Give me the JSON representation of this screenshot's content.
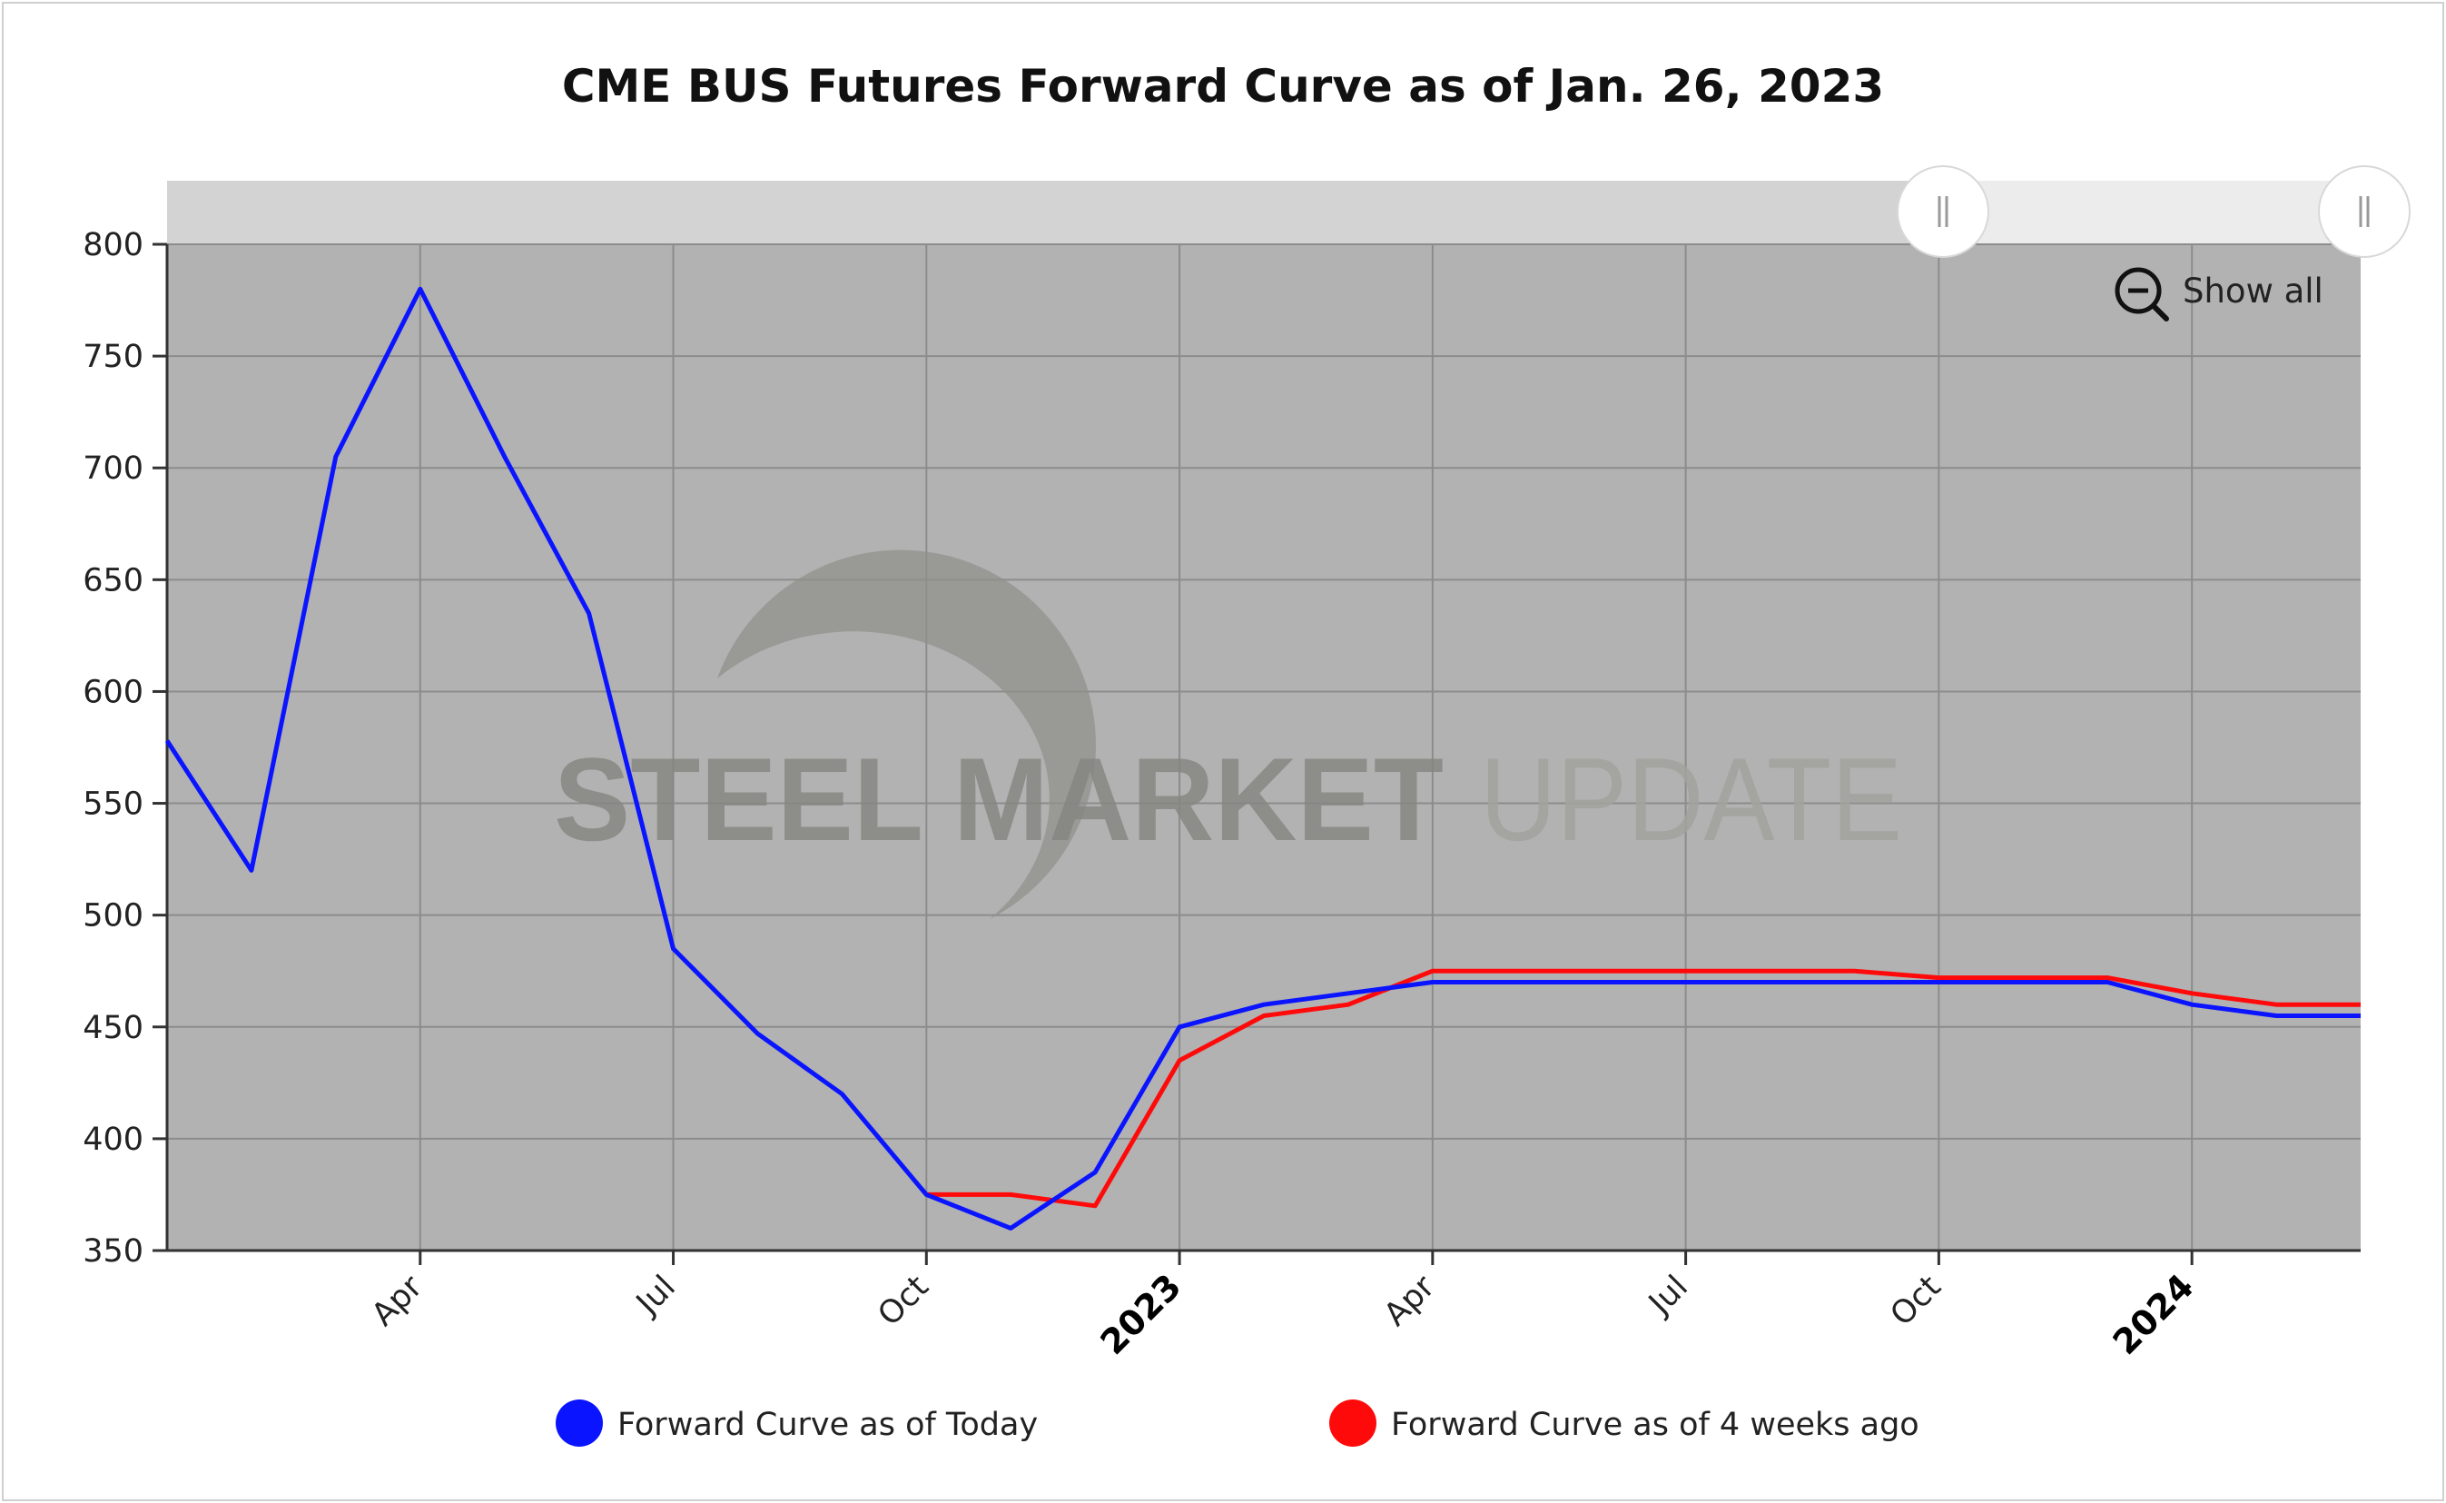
{
  "chart_data": {
    "type": "line",
    "title": "CME BUS Futures Forward Curve as of Jan. 26, 2023",
    "xlabel": "",
    "ylabel": "",
    "ylim": [
      350,
      800
    ],
    "yticks": [
      350,
      400,
      450,
      500,
      550,
      600,
      650,
      700,
      750,
      800
    ],
    "x_range": [
      "2022-01",
      "2024-03"
    ],
    "x_ticks": [
      {
        "label": "Apr",
        "x": "2022-04",
        "bold": false
      },
      {
        "label": "Jul",
        "x": "2022-07",
        "bold": false
      },
      {
        "label": "Oct",
        "x": "2022-10",
        "bold": false
      },
      {
        "label": "2023",
        "x": "2023-01",
        "bold": true
      },
      {
        "label": "Apr",
        "x": "2023-04",
        "bold": false
      },
      {
        "label": "Jul",
        "x": "2023-07",
        "bold": false
      },
      {
        "label": "Oct",
        "x": "2023-10",
        "bold": false
      },
      {
        "label": "2024",
        "x": "2024-01",
        "bold": true
      }
    ],
    "grid": true,
    "legend_position": "bottom",
    "series": [
      {
        "name": "Forward Curve as of Today",
        "color": "#0a14ff",
        "points": [
          [
            "2022-01",
            578
          ],
          [
            "2022-02",
            520
          ],
          [
            "2022-03",
            705
          ],
          [
            "2022-04",
            780
          ],
          [
            "2022-05",
            705
          ],
          [
            "2022-06",
            635
          ],
          [
            "2022-07",
            485
          ],
          [
            "2022-08",
            447
          ],
          [
            "2022-09",
            420
          ],
          [
            "2022-10",
            375
          ],
          [
            "2022-11",
            360
          ],
          [
            "2022-12",
            385
          ],
          [
            "2023-01",
            450
          ],
          [
            "2023-02",
            460
          ],
          [
            "2023-03",
            465
          ],
          [
            "2023-04",
            470
          ],
          [
            "2023-05",
            470
          ],
          [
            "2023-06",
            470
          ],
          [
            "2023-07",
            470
          ],
          [
            "2023-08",
            470
          ],
          [
            "2023-09",
            470
          ],
          [
            "2023-10",
            470
          ],
          [
            "2023-11",
            470
          ],
          [
            "2023-12",
            470
          ],
          [
            "2024-01",
            460
          ],
          [
            "2024-02",
            455
          ],
          [
            "2024-03",
            455
          ]
        ]
      },
      {
        "name": "Forward Curve as of 4 weeks ago",
        "color": "#ff0a0a",
        "points": [
          [
            "2022-10",
            375
          ],
          [
            "2022-11",
            375
          ],
          [
            "2022-12",
            370
          ],
          [
            "2023-01",
            435
          ],
          [
            "2023-02",
            455
          ],
          [
            "2023-03",
            460
          ],
          [
            "2023-04",
            475
          ],
          [
            "2023-05",
            475
          ],
          [
            "2023-06",
            475
          ],
          [
            "2023-07",
            475
          ],
          [
            "2023-08",
            475
          ],
          [
            "2023-09",
            475
          ],
          [
            "2023-10",
            472
          ],
          [
            "2023-11",
            472
          ],
          [
            "2023-12",
            472
          ],
          [
            "2024-01",
            465
          ],
          [
            "2024-02",
            460
          ],
          [
            "2024-03",
            460
          ]
        ]
      }
    ],
    "watermark": {
      "bold": "STEEL MARKET",
      "light": "UPDATE"
    },
    "zoom_control": {
      "label": "Show all",
      "icon": "zoom-out-icon"
    }
  }
}
